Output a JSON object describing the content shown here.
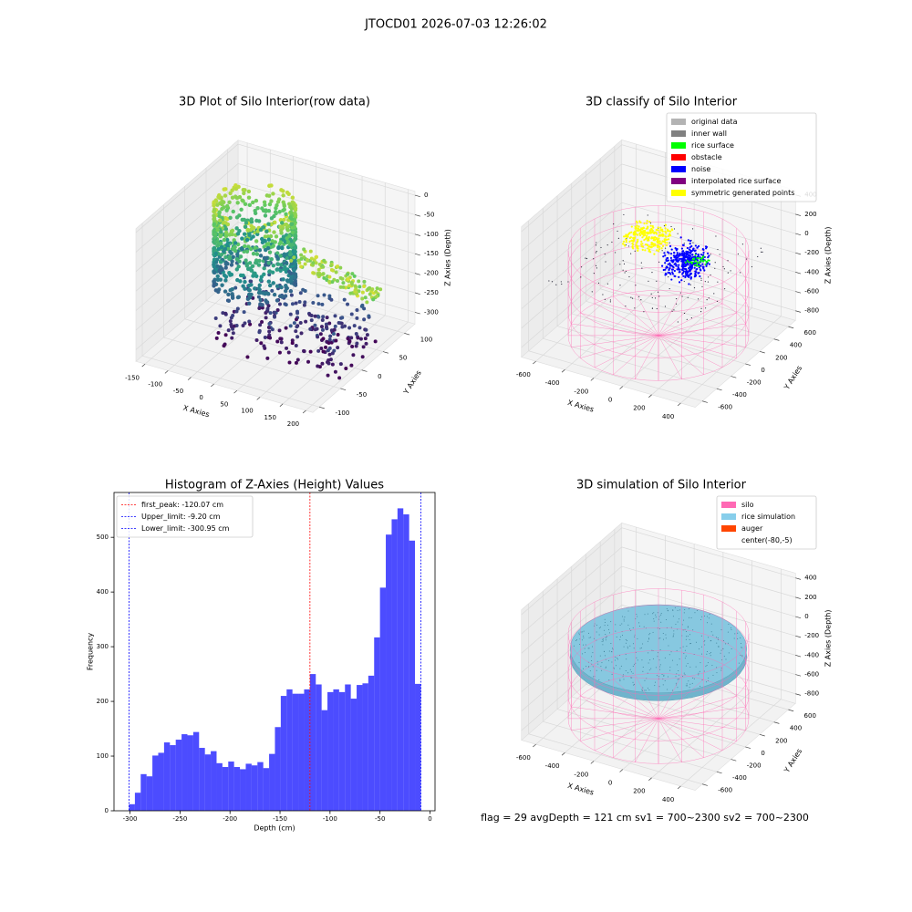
{
  "title": "JTOCD01 2026-07-03 12:26:02",
  "footer": "flag = 29  avgDepth = 121 cm  sv1 = 700~2300  sv2 = 700~2300",
  "chart_data": [
    {
      "type": "scatter3d",
      "title": "3D Plot of Silo Interior(row data)",
      "xlabel": "X Axies",
      "ylabel": "Y Axies",
      "zlabel": "Z Axies (Depth)",
      "xlim": [
        -170,
        215
      ],
      "ylim": [
        -115,
        125
      ],
      "zlim": [
        -330,
        10
      ],
      "xticks": [
        -150,
        -100,
        -50,
        0,
        50,
        100,
        150,
        200
      ],
      "yticks": [
        -100,
        -50,
        0,
        50,
        100
      ],
      "zticks": [
        -300,
        -250,
        -200,
        -150,
        -100,
        -50,
        0
      ],
      "grid": true
    },
    {
      "type": "scatter3d",
      "title": "3D classify of Silo Interior",
      "xlabel": "X Axies",
      "ylabel": "Y Axies",
      "zlabel": "Z Axies (Depth)",
      "xlim": [
        -700,
        500
      ],
      "ylim": [
        -700,
        700
      ],
      "zlim": [
        -900,
        450
      ],
      "xticks": [
        -600,
        -400,
        -200,
        0,
        200,
        400
      ],
      "yticks": [
        -600,
        -400,
        -200,
        0,
        200,
        400,
        600
      ],
      "zticks": [
        -800,
        -600,
        -400,
        -200,
        0,
        200,
        400
      ],
      "grid": true,
      "legend": "upper right",
      "legend_items": [
        {
          "name": "original data",
          "color": "#b3b3b3"
        },
        {
          "name": "inner wall",
          "color": "#808080"
        },
        {
          "name": "rice surface",
          "color": "#00ff00"
        },
        {
          "name": "obstacle",
          "color": "#ff0000"
        },
        {
          "name": "noise",
          "color": "#0000ff"
        },
        {
          "name": "interpolated rice surface",
          "color": "#800080"
        },
        {
          "name": "symmetric generated points",
          "color": "#ffff00"
        }
      ]
    },
    {
      "type": "histogram",
      "title": "Histogram of Z-Axies (Height) Values",
      "xlabel": "Depth (cm)",
      "ylabel": "Frequency",
      "bins": [
        -300.95,
        -295.115,
        -289.28,
        -283.445,
        -277.61,
        -271.775,
        -265.94,
        -260.105,
        -254.27,
        -248.435,
        -242.6,
        -236.765,
        -230.93,
        -225.095,
        -219.26,
        -213.425,
        -207.59,
        -201.755,
        -195.92,
        -190.085,
        -184.25,
        -178.415,
        -172.58,
        -166.745,
        -160.91,
        -155.075,
        -149.24,
        -143.405,
        -137.57,
        -131.735,
        -125.9,
        -120.065,
        -114.23,
        -108.395,
        -102.56,
        -96.725,
        -90.89,
        -85.055,
        -79.22,
        -73.385,
        -67.55,
        -61.715,
        -55.88,
        -50.045,
        -44.21,
        -38.375,
        -32.54,
        -26.705,
        -20.87,
        -15.035,
        -9.2
      ],
      "values": [
        12,
        33,
        67,
        63,
        101,
        106,
        125,
        120,
        130,
        140,
        138,
        144,
        115,
        103,
        109,
        87,
        80,
        90,
        80,
        76,
        86,
        83,
        89,
        78,
        104,
        153,
        210,
        222,
        214,
        214,
        222,
        250,
        231,
        184,
        217,
        222,
        217,
        231,
        205,
        230,
        233,
        247,
        317,
        408,
        505,
        533,
        553,
        542,
        494,
        232
      ],
      "color": "#0000ff",
      "alpha": 0.7,
      "xlim": [
        -316,
        5
      ],
      "ylim": [
        0,
        582
      ],
      "xticks": [
        -300,
        -250,
        -200,
        -150,
        -100,
        -50,
        0
      ],
      "yticks": [
        0,
        100,
        200,
        300,
        400,
        500
      ],
      "legend": "upper left",
      "vlines": [
        {
          "name": "first_peak: -120.07 cm",
          "value": -120.07,
          "color": "#ff0000"
        },
        {
          "name": "Upper_limit: -9.20 cm",
          "value": -9.2,
          "color": "#0000ff"
        },
        {
          "name": "Lower_limit: -300.95 cm",
          "value": -300.95,
          "color": "#0000ff"
        }
      ]
    },
    {
      "type": "scatter3d",
      "title": "3D simulation of Silo Interior",
      "xlabel": "X Axies",
      "ylabel": "Y Axies",
      "zlabel": "Z Axies (Depth)",
      "xlim": [
        -700,
        500
      ],
      "ylim": [
        -700,
        700
      ],
      "zlim": [
        -900,
        450
      ],
      "xticks": [
        -600,
        -400,
        -200,
        0,
        200,
        400
      ],
      "yticks": [
        -600,
        -400,
        -200,
        0,
        200,
        400,
        600
      ],
      "zticks": [
        -800,
        -600,
        -400,
        -200,
        0,
        200,
        400
      ],
      "grid": true,
      "legend": "upper right",
      "legend_items": [
        {
          "name": "silo",
          "color": "#ff69b4"
        },
        {
          "name": "rice simulation",
          "color": "#87ceeb"
        },
        {
          "name": "auger",
          "color": "#ff4500"
        },
        {
          "name": "center(-80,-5)",
          "color": "#ffffff"
        }
      ]
    }
  ]
}
